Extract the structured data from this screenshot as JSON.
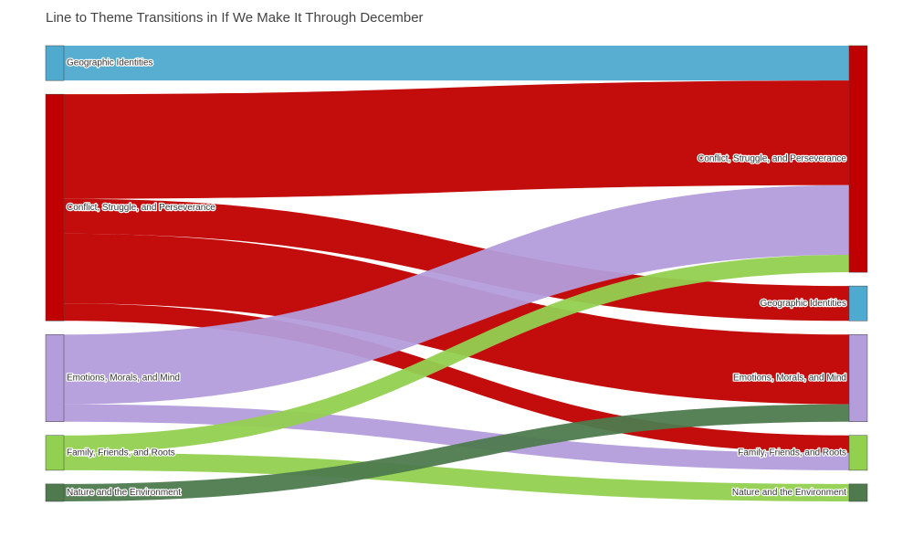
{
  "chart_data": {
    "type": "sankey",
    "title": "Line to Theme Transitions in If We Make It Through December",
    "nodes": {
      "labels": [
        "Geographic Identities",
        "Conflict, Struggle, and Perseverance",
        "Emotions, Morals, and Mind",
        "Family, Friends, and Roots",
        "Nature and the Environment",
        "Conflict, Struggle, and Perseverance",
        "Geographic Identities",
        "Emotions, Morals, and Mind",
        "Family, Friends, and Roots",
        "Nature and the Environment"
      ],
      "colors": [
        "#4eaacf",
        "#c00000",
        "#b39ddb",
        "#92d050",
        "#4e7a4e",
        "#c00000",
        "#4eaacf",
        "#b39ddb",
        "#92d050",
        "#4e7a4e"
      ]
    },
    "links": {
      "source": [
        0,
        1,
        1,
        1,
        1,
        2,
        2,
        3,
        3,
        4
      ],
      "target": [
        5,
        5,
        6,
        7,
        8,
        5,
        8,
        5,
        9,
        7
      ],
      "values": [
        2,
        6,
        2,
        4,
        1,
        4,
        1,
        1,
        1,
        1
      ]
    }
  }
}
